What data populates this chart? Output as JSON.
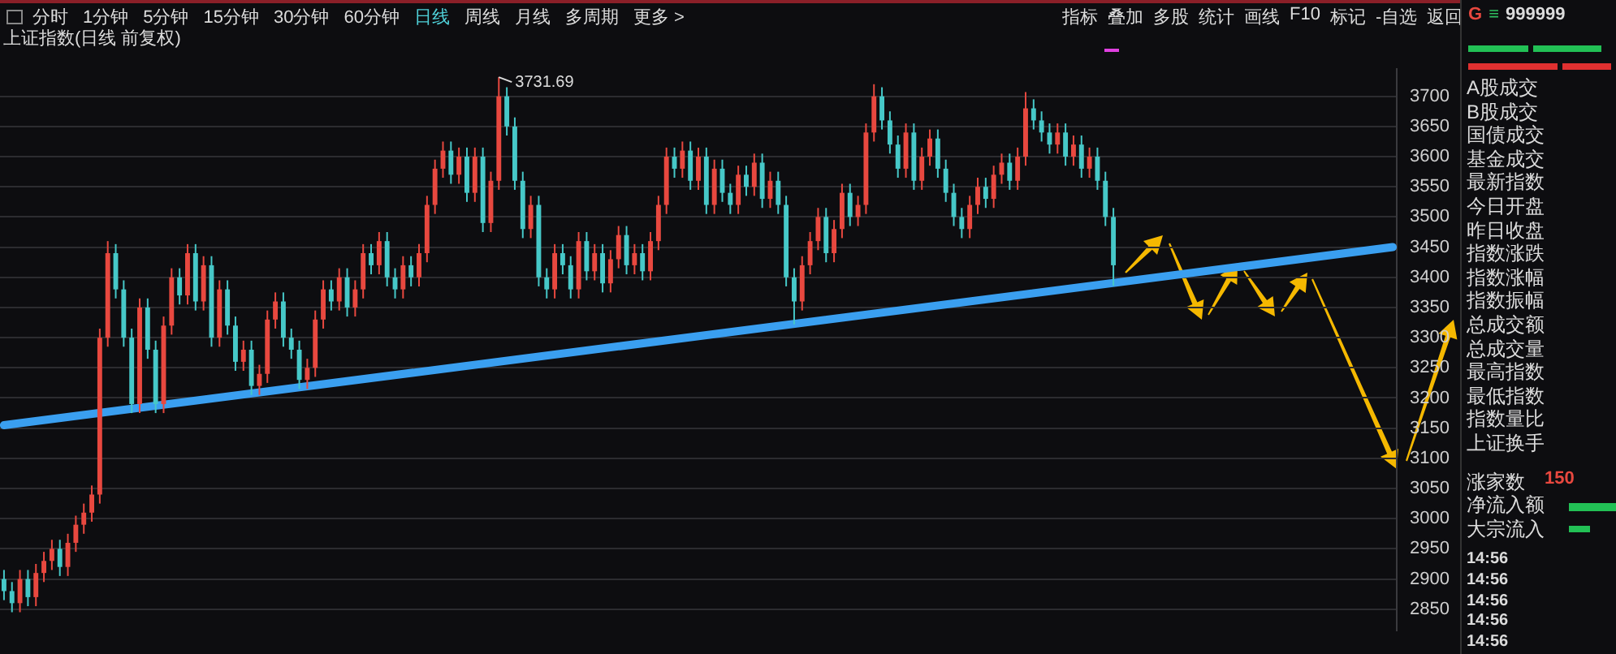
{
  "chart_data": {
    "type": "candlestick",
    "title": "上证指数(日线 前复权)",
    "categories": [
      null,
      null,
      null,
      null,
      null,
      null,
      null,
      null,
      null,
      null,
      null,
      null,
      null,
      null,
      null,
      null,
      null,
      null,
      null,
      null,
      null,
      null,
      null,
      null,
      null,
      null,
      null,
      null,
      null,
      null,
      null,
      null,
      null,
      null,
      null,
      null,
      null,
      null,
      null,
      null,
      null,
      null,
      null,
      null,
      null,
      null,
      null,
      null,
      null,
      null,
      null,
      null,
      null,
      null,
      null,
      null,
      null,
      null,
      null,
      null,
      null,
      null,
      null,
      null,
      null,
      null,
      null,
      null,
      null,
      null,
      null,
      null,
      null,
      null,
      null,
      null,
      null,
      null,
      null,
      null,
      null,
      null,
      null,
      null,
      null,
      null,
      null,
      null,
      null,
      null,
      null,
      null,
      null,
      null,
      null,
      null,
      null,
      null,
      null,
      null,
      null,
      null,
      null,
      null,
      null,
      null,
      null,
      null,
      null,
      null,
      null,
      null,
      null,
      null,
      null,
      null,
      null,
      null,
      null,
      null,
      null,
      null,
      null,
      null,
      null,
      null,
      null,
      null,
      null,
      null,
      null,
      null,
      null,
      null,
      null,
      null,
      null,
      null,
      null,
      null,
      null,
      null,
      null,
      null,
      null,
      null,
      null,
      null,
      null,
      null,
      null,
      null,
      null,
      null,
      null,
      null,
      null,
      null,
      null,
      null,
      null,
      null,
      null,
      null,
      null,
      null,
      null,
      null,
      null,
      null,
      null,
      null,
      null,
      null,
      null
    ],
    "ylim": [
      2815,
      3745
    ],
    "yticks": [
      2850,
      2900,
      2950,
      3000,
      3050,
      3100,
      3150,
      3200,
      3250,
      3300,
      3350,
      3400,
      3450,
      3500,
      3550,
      3600,
      3650,
      3700
    ],
    "tick_labels": "y",
    "grid": "y",
    "colors": [
      "#46c8c8",
      "#46c8c8",
      "#e8483f",
      "#46c8c8",
      "#e8483f",
      "#e8483f",
      "#e8483f",
      "#46c8c8",
      "#e8483f",
      "#e8483f",
      "#e8483f",
      "#e8483f",
      "#e8483f",
      "#e8483f",
      "#46c8c8",
      "#46c8c8",
      "#46c8c8",
      "#e8483f",
      "#46c8c8",
      "#46c8c8",
      "#e8483f",
      "#e8483f",
      "#46c8c8",
      "#e8483f",
      "#46c8c8",
      "#e8483f",
      "#46c8c8",
      "#e8483f",
      "#46c8c8",
      "#46c8c8",
      "#e8483f",
      "#46c8c8",
      "#e8483f",
      "#e8483f",
      "#e8483f",
      "#46c8c8",
      "#46c8c8",
      "#46c8c8",
      "#e8483f",
      "#e8483f",
      "#e8483f",
      "#46c8c8",
      "#e8483f",
      "#46c8c8",
      "#e8483f",
      "#e8483f",
      "#46c8c8",
      "#e8483f",
      "#46c8c8",
      "#46c8c8",
      "#e8483f",
      "#46c8c8",
      "#e8483f",
      "#e8483f",
      "#e8483f",
      "#e8483f",
      "#46c8c8",
      "#e8483f",
      "#46c8c8",
      "#e8483f",
      "#46c8c8",
      "#e8483f",
      "#e8483f",
      "#46c8c8",
      "#46c8c8",
      "#46c8c8",
      "#e8483f",
      "#46c8c8",
      "#46c8c8",
      "#e8483f",
      "#46c8c8",
      "#46c8c8",
      "#e8483f",
      "#46c8c8",
      "#e8483f",
      "#46c8c8",
      "#e8483f",
      "#e8483f",
      "#46c8c8",
      "#e8483f",
      "#46c8c8",
      "#e8483f",
      "#e8483f",
      "#e8483f",
      "#46c8c8",
      "#e8483f",
      "#46c8c8",
      "#e8483f",
      "#46c8c8",
      "#e8483f",
      "#46c8c8",
      "#46c8c8",
      "#e8483f",
      "#46c8c8",
      "#e8483f",
      "#46c8c8",
      "#e8483f",
      "#46c8c8",
      "#46c8c8",
      "#46c8c8",
      "#e8483f",
      "#e8483f",
      "#e8483f",
      "#46c8c8",
      "#e8483f",
      "#e8483f",
      "#46c8c8",
      "#e8483f",
      "#e8483f",
      "#e8483f",
      "#46c8c8",
      "#46c8c8",
      "#46c8c8",
      "#e8483f",
      "#46c8c8",
      "#e8483f",
      "#e8483f",
      "#46c8c8",
      "#46c8c8",
      "#46c8c8",
      "#46c8c8",
      "#e8483f",
      "#e8483f",
      "#46c8c8",
      "#e8483f",
      "#e8483f",
      "#46c8c8",
      "#e8483f",
      "#e8483f",
      "#46c8c8",
      "#46c8c8",
      "#46c8c8",
      "#e8483f",
      "#46c8c8",
      "#e8483f",
      "#46c8c8",
      "#e8483f",
      "#46c8c8",
      "#46c8c8",
      "#46c8c8",
      null,
      null,
      null,
      null,
      null,
      null,
      null,
      null,
      null,
      null,
      null,
      null,
      null,
      null,
      null,
      null,
      null,
      null,
      null,
      null,
      null,
      null,
      null,
      null,
      null,
      null,
      null,
      null,
      null,
      null,
      null,
      null,
      null,
      null,
      null
    ],
    "ohlc": [
      [
        2900,
        2915,
        2865,
        2880
      ],
      [
        2880,
        2895,
        2845,
        2860
      ],
      [
        2860,
        2915,
        2845,
        2900
      ],
      [
        2900,
        2915,
        2855,
        2870
      ],
      [
        2870,
        2925,
        2855,
        2910
      ],
      [
        2910,
        2945,
        2895,
        2930
      ],
      [
        2930,
        2965,
        2915,
        2950
      ],
      [
        2950,
        2965,
        2905,
        2920
      ],
      [
        2920,
        2975,
        2905,
        2960
      ],
      [
        2960,
        3005,
        2945,
        2990
      ],
      [
        2990,
        3025,
        2975,
        3010
      ],
      [
        3010,
        3055,
        2995,
        3040
      ],
      [
        3040,
        3315,
        3025,
        3300
      ],
      [
        3300,
        3460,
        3285,
        3440
      ],
      [
        3440,
        3455,
        3365,
        3380
      ],
      [
        3380,
        3395,
        3285,
        3300
      ],
      [
        3300,
        3315,
        3175,
        3190
      ],
      [
        3190,
        3365,
        3175,
        3350
      ],
      [
        3350,
        3365,
        3265,
        3280
      ],
      [
        3280,
        3295,
        3175,
        3190
      ],
      [
        3190,
        3335,
        3175,
        3320
      ],
      [
        3320,
        3415,
        3305,
        3400
      ],
      [
        3400,
        3415,
        3355,
        3370
      ],
      [
        3370,
        3455,
        3355,
        3440
      ],
      [
        3440,
        3455,
        3345,
        3360
      ],
      [
        3360,
        3435,
        3345,
        3420
      ],
      [
        3420,
        3435,
        3285,
        3300
      ],
      [
        3300,
        3395,
        3285,
        3380
      ],
      [
        3380,
        3395,
        3305,
        3320
      ],
      [
        3320,
        3335,
        3245,
        3260
      ],
      [
        3260,
        3295,
        3245,
        3280
      ],
      [
        3280,
        3295,
        3205,
        3220
      ],
      [
        3220,
        3255,
        3205,
        3240
      ],
      [
        3240,
        3345,
        3225,
        3330
      ],
      [
        3330,
        3375,
        3315,
        3360
      ],
      [
        3360,
        3375,
        3285,
        3300
      ],
      [
        3300,
        3315,
        3265,
        3280
      ],
      [
        3280,
        3295,
        3215,
        3230
      ],
      [
        3230,
        3265,
        3215,
        3250
      ],
      [
        3250,
        3345,
        3235,
        3330
      ],
      [
        3330,
        3395,
        3315,
        3380
      ],
      [
        3380,
        3395,
        3345,
        3360
      ],
      [
        3360,
        3415,
        3345,
        3400
      ],
      [
        3400,
        3415,
        3335,
        3350
      ],
      [
        3350,
        3395,
        3335,
        3380
      ],
      [
        3380,
        3455,
        3365,
        3440
      ],
      [
        3440,
        3455,
        3405,
        3420
      ],
      [
        3420,
        3475,
        3405,
        3460
      ],
      [
        3460,
        3475,
        3385,
        3400
      ],
      [
        3400,
        3415,
        3365,
        3380
      ],
      [
        3380,
        3435,
        3365,
        3420
      ],
      [
        3420,
        3435,
        3385,
        3400
      ],
      [
        3400,
        3455,
        3385,
        3440
      ],
      [
        3440,
        3535,
        3425,
        3520
      ],
      [
        3520,
        3595,
        3505,
        3580
      ],
      [
        3580,
        3625,
        3565,
        3610
      ],
      [
        3610,
        3625,
        3555,
        3570
      ],
      [
        3570,
        3615,
        3555,
        3600
      ],
      [
        3600,
        3615,
        3525,
        3540
      ],
      [
        3540,
        3615,
        3525,
        3600
      ],
      [
        3600,
        3615,
        3475,
        3490
      ],
      [
        3490,
        3575,
        3475,
        3560
      ],
      [
        3560,
        3731.69,
        3545,
        3700
      ],
      [
        3700,
        3715,
        3635,
        3650
      ],
      [
        3650,
        3665,
        3545,
        3560
      ],
      [
        3560,
        3575,
        3465,
        3480
      ],
      [
        3480,
        3535,
        3465,
        3520
      ],
      [
        3520,
        3535,
        3385,
        3400
      ],
      [
        3400,
        3415,
        3365,
        3380
      ],
      [
        3380,
        3455,
        3365,
        3440
      ],
      [
        3440,
        3455,
        3405,
        3420
      ],
      [
        3420,
        3435,
        3365,
        3380
      ],
      [
        3380,
        3475,
        3365,
        3460
      ],
      [
        3460,
        3475,
        3395,
        3410
      ],
      [
        3410,
        3455,
        3395,
        3440
      ],
      [
        3440,
        3455,
        3375,
        3390
      ],
      [
        3390,
        3445,
        3375,
        3430
      ],
      [
        3430,
        3485,
        3415,
        3470
      ],
      [
        3470,
        3485,
        3405,
        3420
      ],
      [
        3420,
        3455,
        3405,
        3440
      ],
      [
        3440,
        3455,
        3395,
        3410
      ],
      [
        3410,
        3475,
        3395,
        3460
      ],
      [
        3460,
        3535,
        3445,
        3520
      ],
      [
        3520,
        3615,
        3505,
        3600
      ],
      [
        3600,
        3615,
        3565,
        3580
      ],
      [
        3580,
        3625,
        3565,
        3610
      ],
      [
        3610,
        3625,
        3545,
        3560
      ],
      [
        3560,
        3615,
        3545,
        3600
      ],
      [
        3600,
        3615,
        3505,
        3520
      ],
      [
        3520,
        3595,
        3505,
        3580
      ],
      [
        3580,
        3595,
        3525,
        3540
      ],
      [
        3540,
        3555,
        3505,
        3520
      ],
      [
        3520,
        3585,
        3505,
        3570
      ],
      [
        3570,
        3585,
        3535,
        3550
      ],
      [
        3550,
        3605,
        3535,
        3590
      ],
      [
        3590,
        3605,
        3515,
        3530
      ],
      [
        3530,
        3575,
        3515,
        3560
      ],
      [
        3560,
        3575,
        3505,
        3520
      ],
      [
        3520,
        3535,
        3385,
        3400
      ],
      [
        3400,
        3415,
        3322,
        3360
      ],
      [
        3360,
        3435,
        3345,
        3420
      ],
      [
        3420,
        3475,
        3405,
        3460
      ],
      [
        3460,
        3515,
        3445,
        3500
      ],
      [
        3500,
        3515,
        3425,
        3440
      ],
      [
        3440,
        3495,
        3425,
        3480
      ],
      [
        3480,
        3555,
        3465,
        3540
      ],
      [
        3540,
        3555,
        3485,
        3500
      ],
      [
        3500,
        3535,
        3485,
        3520
      ],
      [
        3520,
        3655,
        3505,
        3640
      ],
      [
        3640,
        3720,
        3625,
        3700
      ],
      [
        3700,
        3715,
        3645,
        3660
      ],
      [
        3660,
        3675,
        3605,
        3620
      ],
      [
        3620,
        3635,
        3565,
        3580
      ],
      [
        3580,
        3655,
        3565,
        3640
      ],
      [
        3640,
        3655,
        3545,
        3560
      ],
      [
        3560,
        3615,
        3545,
        3600
      ],
      [
        3600,
        3645,
        3585,
        3630
      ],
      [
        3630,
        3645,
        3565,
        3580
      ],
      [
        3580,
        3595,
        3525,
        3540
      ],
      [
        3540,
        3555,
        3485,
        3500
      ],
      [
        3500,
        3515,
        3465,
        3480
      ],
      [
        3480,
        3535,
        3465,
        3520
      ],
      [
        3520,
        3565,
        3505,
        3550
      ],
      [
        3550,
        3565,
        3515,
        3530
      ],
      [
        3530,
        3585,
        3515,
        3570
      ],
      [
        3570,
        3605,
        3555,
        3590
      ],
      [
        3590,
        3605,
        3545,
        3560
      ],
      [
        3560,
        3615,
        3545,
        3600
      ],
      [
        3600,
        3707,
        3585,
        3680
      ],
      [
        3680,
        3695,
        3645,
        3660
      ],
      [
        3660,
        3675,
        3625,
        3640
      ],
      [
        3640,
        3655,
        3605,
        3620
      ],
      [
        3620,
        3655,
        3605,
        3640
      ],
      [
        3640,
        3655,
        3585,
        3600
      ],
      [
        3600,
        3635,
        3585,
        3620
      ],
      [
        3620,
        3635,
        3565,
        3580
      ],
      [
        3580,
        3615,
        3565,
        3600
      ],
      [
        3600,
        3615,
        3545,
        3560
      ],
      [
        3560,
        3575,
        3485,
        3500
      ],
      [
        3500,
        3515,
        3386,
        3420
      ],
      null,
      null,
      null,
      null,
      null,
      null,
      null,
      null,
      null,
      null,
      null,
      null,
      null,
      null,
      null,
      null,
      null,
      null,
      null,
      null,
      null,
      null,
      null,
      null,
      null,
      null,
      null,
      null,
      null,
      null,
      null,
      null,
      null,
      null,
      null
    ],
    "series": [
      {
        "type": "line",
        "color": "#3a9ff0",
        "values": [
          3155,
          null,
          null,
          null,
          null,
          null,
          null,
          null,
          null,
          null,
          null,
          null,
          null,
          null,
          null,
          null,
          null,
          null,
          null,
          null,
          null,
          null,
          null,
          null,
          null,
          null,
          null,
          null,
          null,
          null,
          null,
          null,
          null,
          null,
          null,
          null,
          null,
          null,
          null,
          null,
          null,
          null,
          null,
          null,
          null,
          null,
          null,
          null,
          null,
          null,
          null,
          null,
          null,
          null,
          null,
          null,
          null,
          null,
          null,
          null,
          null,
          null,
          null,
          null,
          null,
          null,
          null,
          null,
          null,
          null,
          null,
          null,
          null,
          null,
          null,
          null,
          null,
          null,
          null,
          null,
          null,
          null,
          null,
          null,
          null,
          null,
          null,
          null,
          null,
          null,
          null,
          null,
          null,
          null,
          null,
          null,
          null,
          null,
          null,
          null,
          null,
          null,
          null,
          null,
          null,
          null,
          null,
          null,
          null,
          null,
          null,
          null,
          null,
          null,
          null,
          null,
          null,
          null,
          null,
          null,
          null,
          null,
          null,
          null,
          null,
          null,
          null,
          null,
          null,
          null,
          null,
          null,
          null,
          null,
          null,
          null,
          null,
          null,
          null,
          null,
          null,
          null,
          null,
          null,
          null,
          null,
          null,
          null,
          null,
          null,
          null,
          null,
          null,
          null,
          null,
          null,
          null,
          null,
          null,
          null,
          null,
          null,
          null,
          null,
          null,
          null,
          null,
          null,
          null,
          null,
          null,
          null,
          null,
          null,
          3450
        ]
      }
    ],
    "annotations": [
      "3731.69",
      "分时",
      "1分钟",
      "5分钟",
      "15分钟",
      "30分钟",
      "60分钟",
      "日线",
      "周线",
      "月线",
      "多周期",
      "更多 >",
      "指标",
      "叠加",
      "多股",
      "统计",
      "画线",
      "F10",
      "标记",
      "-自选",
      "返回",
      "G",
      "≡",
      "999999",
      "A股成交",
      "B股成交",
      "国债成交",
      "基金成交",
      "最新指数",
      "今日开盘",
      "昨日收盘",
      "指数涨跌",
      "指数涨幅",
      "指数振幅",
      "总成交额",
      "总成交量",
      "最高指数",
      "最低指数",
      "指数量比",
      "上证换手",
      "涨家数",
      "150",
      "净流入额",
      "大宗流入",
      "14:56",
      "14:56",
      "14:56",
      "14:56",
      "14:56"
    ]
  }
}
